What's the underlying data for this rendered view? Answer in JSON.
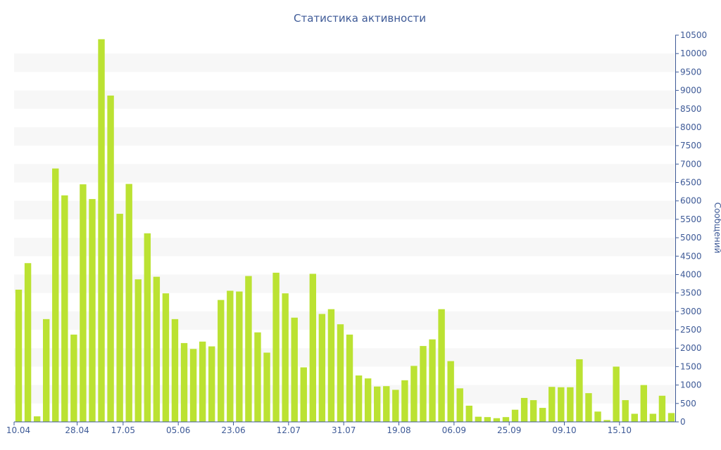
{
  "chart_data": {
    "type": "bar",
    "title": "Статистика активности",
    "xlabel": "",
    "ylabel": "Сообщений",
    "ylim": [
      0,
      10500
    ],
    "y_ticks": [
      0,
      500,
      1000,
      1500,
      2000,
      2500,
      3000,
      3500,
      4000,
      4500,
      5000,
      5500,
      6000,
      6500,
      7000,
      7500,
      8000,
      8500,
      9000,
      9500,
      10000,
      10500
    ],
    "y_axis_position": "right",
    "grid": "alternating horizontal bands",
    "x_tick_labels": [
      "10.04",
      "28.04",
      "17.05",
      "05.06",
      "23.06",
      "12.07",
      "31.07",
      "19.08",
      "06.09",
      "25.09",
      "09.10",
      "15.10"
    ],
    "x_tick_label_after_bar": [
      0,
      7,
      12,
      18,
      24,
      30,
      36,
      42,
      48,
      54,
      60,
      66
    ],
    "colors": {
      "bar": "#bbe232",
      "band": "#f7f7f7",
      "text": "#3e5a97",
      "axis": "#3e5a97"
    },
    "values": [
      3590,
      4310,
      150,
      2790,
      6880,
      6150,
      2370,
      6450,
      6050,
      10390,
      8860,
      5650,
      6460,
      3870,
      5120,
      3940,
      3490,
      2790,
      2140,
      1980,
      2180,
      2050,
      3310,
      3560,
      3540,
      3960,
      2430,
      1880,
      4050,
      3490,
      2830,
      1480,
      4020,
      2930,
      3060,
      2650,
      2370,
      1260,
      1180,
      960,
      970,
      870,
      1130,
      1520,
      2060,
      2240,
      3060,
      1650,
      910,
      440,
      140,
      130,
      100,
      130,
      330,
      650,
      590,
      380,
      950,
      940,
      940,
      1700,
      780,
      280,
      50,
      1500,
      590,
      220,
      1000,
      220,
      710,
      240
    ]
  }
}
